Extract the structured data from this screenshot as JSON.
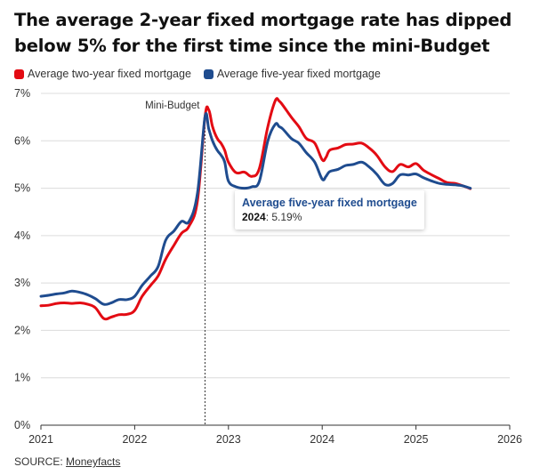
{
  "title": "The average 2-year fixed mortgage rate has dipped below 5% for the first time since the mini-Budget",
  "source_label": "SOURCE:",
  "source_name": "Moneyfacts",
  "tooltip": {
    "series": "Average five-year fixed mortgage",
    "year": "2024",
    "value": "5.19%"
  },
  "colors": {
    "two_year": "#e30b13",
    "five_year": "#1f4c8f"
  },
  "chart_data": {
    "type": "line",
    "title": "The average 2-year fixed mortgage rate has dipped below 5% for the first time since the mini-Budget",
    "x_ticks": [
      "2021",
      "2022",
      "2023",
      "2024",
      "2025",
      "2026"
    ],
    "y_ticks": [
      "0%",
      "1%",
      "2%",
      "3%",
      "4%",
      "5%",
      "6%",
      "7%"
    ],
    "xlim": [
      2021,
      2026
    ],
    "ylim": [
      0,
      7
    ],
    "grid": "horizontal",
    "legend_position": "top-left",
    "annotation": {
      "label": "Mini-Budget",
      "x": 2022.75
    },
    "series": [
      {
        "name": "Average two-year fixed mortgage",
        "color": "#e30b13",
        "x": [
          2021.0,
          2021.08,
          2021.17,
          2021.25,
          2021.33,
          2021.42,
          2021.5,
          2021.58,
          2021.67,
          2021.75,
          2021.83,
          2021.92,
          2022.0,
          2022.08,
          2022.17,
          2022.25,
          2022.33,
          2022.42,
          2022.5,
          2022.58,
          2022.67,
          2022.75,
          2022.79,
          2022.83,
          2022.88,
          2022.92,
          2022.96,
          2023.0,
          2023.08,
          2023.17,
          2023.25,
          2023.33,
          2023.42,
          2023.5,
          2023.54,
          2023.58,
          2023.67,
          2023.75,
          2023.83,
          2023.92,
          2024.0,
          2024.04,
          2024.08,
          2024.17,
          2024.25,
          2024.33,
          2024.42,
          2024.5,
          2024.58,
          2024.67,
          2024.75,
          2024.83,
          2024.92,
          2025.0,
          2025.08,
          2025.17,
          2025.25,
          2025.33,
          2025.42,
          2025.5,
          2025.58
        ],
        "values": [
          2.52,
          2.53,
          2.57,
          2.58,
          2.57,
          2.58,
          2.55,
          2.48,
          2.25,
          2.28,
          2.33,
          2.34,
          2.42,
          2.72,
          2.95,
          3.15,
          3.5,
          3.8,
          4.05,
          4.2,
          4.74,
          6.5,
          6.65,
          6.3,
          6.05,
          5.95,
          5.8,
          5.55,
          5.33,
          5.34,
          5.25,
          5.42,
          6.3,
          6.85,
          6.84,
          6.75,
          6.5,
          6.3,
          6.05,
          5.95,
          5.6,
          5.65,
          5.8,
          5.85,
          5.92,
          5.93,
          5.95,
          5.85,
          5.7,
          5.45,
          5.35,
          5.5,
          5.45,
          5.52,
          5.38,
          5.28,
          5.2,
          5.12,
          5.1,
          5.05,
          4.99
        ]
      },
      {
        "name": "Average five-year fixed mortgage",
        "color": "#1f4c8f",
        "x": [
          2021.0,
          2021.08,
          2021.17,
          2021.25,
          2021.33,
          2021.42,
          2021.5,
          2021.58,
          2021.67,
          2021.75,
          2021.83,
          2021.92,
          2022.0,
          2022.08,
          2022.17,
          2022.25,
          2022.33,
          2022.42,
          2022.5,
          2022.58,
          2022.67,
          2022.75,
          2022.79,
          2022.83,
          2022.88,
          2022.92,
          2022.96,
          2023.0,
          2023.08,
          2023.17,
          2023.25,
          2023.33,
          2023.42,
          2023.5,
          2023.54,
          2023.58,
          2023.67,
          2023.75,
          2023.83,
          2023.92,
          2024.0,
          2024.04,
          2024.08,
          2024.17,
          2024.25,
          2024.33,
          2024.42,
          2024.5,
          2024.58,
          2024.67,
          2024.75,
          2024.83,
          2024.92,
          2025.0,
          2025.08,
          2025.17,
          2025.25,
          2025.33,
          2025.42,
          2025.5,
          2025.58
        ],
        "values": [
          2.72,
          2.74,
          2.77,
          2.79,
          2.83,
          2.8,
          2.75,
          2.67,
          2.55,
          2.58,
          2.65,
          2.65,
          2.72,
          2.95,
          3.15,
          3.35,
          3.9,
          4.1,
          4.3,
          4.3,
          4.9,
          6.5,
          6.25,
          6.0,
          5.8,
          5.7,
          5.55,
          5.15,
          5.03,
          5.0,
          5.03,
          5.15,
          6.0,
          6.35,
          6.3,
          6.25,
          6.05,
          5.95,
          5.75,
          5.55,
          5.19,
          5.25,
          5.35,
          5.4,
          5.48,
          5.5,
          5.55,
          5.45,
          5.3,
          5.08,
          5.1,
          5.28,
          5.28,
          5.3,
          5.22,
          5.15,
          5.1,
          5.08,
          5.07,
          5.05,
          5.0
        ]
      }
    ]
  }
}
